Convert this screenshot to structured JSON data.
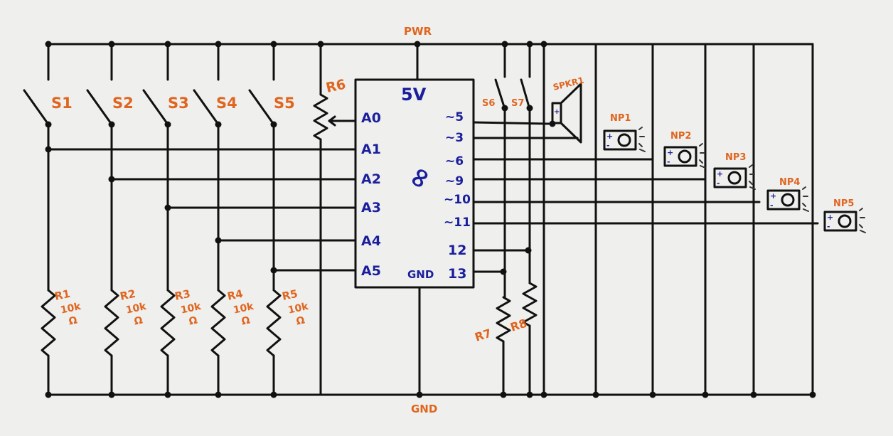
{
  "rails": {
    "power_label": "PWR",
    "ground_label": "GND"
  },
  "microcontroller": {
    "supply_label": "5V",
    "ground_label": "GND",
    "logo_symbol": "∞",
    "left_pins": [
      "A0",
      "A1",
      "A2",
      "A3",
      "A4",
      "A5"
    ],
    "right_pins": [
      "~5",
      "~3",
      "~6",
      "~9",
      "~10",
      "~11",
      "12",
      "13"
    ]
  },
  "switches": [
    "S1",
    "S2",
    "S3",
    "S4",
    "S5",
    "S6",
    "S7"
  ],
  "pulldown_resistors": [
    {
      "name": "R1",
      "value": "10k",
      "unit": "Ω"
    },
    {
      "name": "R2",
      "value": "10k",
      "unit": "Ω"
    },
    {
      "name": "R3",
      "value": "10k",
      "unit": "Ω"
    },
    {
      "name": "R4",
      "value": "10k",
      "unit": "Ω"
    },
    {
      "name": "R5",
      "value": "10k",
      "unit": "Ω"
    }
  ],
  "potentiometer": "R6",
  "other_resistors": [
    "R7",
    "R8"
  ],
  "speaker": "SPKR1",
  "neopixels": [
    "NP1",
    "NP2",
    "NP3",
    "NP4",
    "NP5"
  ],
  "polarity": {
    "plus": "+",
    "minus": "-"
  },
  "colors": {
    "component_labels": "#e0651f",
    "pin_labels": "#1a1f9c",
    "wire": "#111111",
    "background": "#efefed"
  }
}
